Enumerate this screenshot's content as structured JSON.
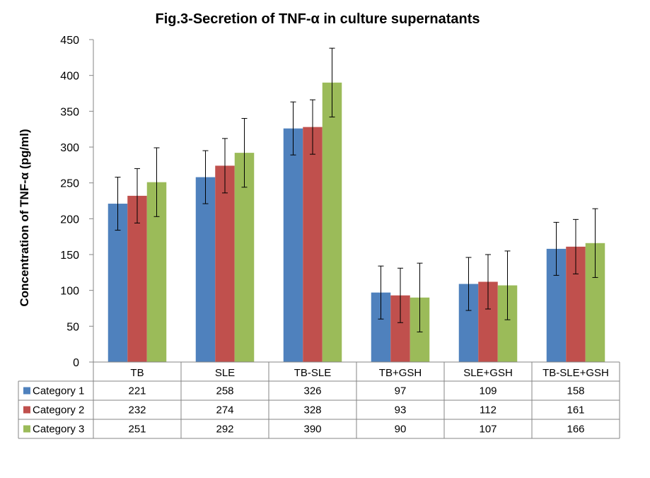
{
  "chart_data": {
    "type": "bar",
    "title": "Fig.3-Secretion of TNF-α in culture supernatants",
    "xlabel": "",
    "ylabel": "Concentration of TNF-α (pg/ml)",
    "ylim": [
      0,
      450
    ],
    "yticks": [
      0,
      50,
      100,
      150,
      200,
      250,
      300,
      350,
      400,
      450
    ],
    "categories": [
      "TB",
      "SLE",
      "TB-SLE",
      "TB+GSH",
      "SLE+GSH",
      "TB-SLE+GSH"
    ],
    "series": [
      {
        "name": "Category 1",
        "color": "#4f81bd",
        "values": [
          221,
          258,
          326,
          97,
          109,
          158
        ],
        "error": [
          37,
          37,
          37,
          37,
          37,
          37
        ]
      },
      {
        "name": "Category 2",
        "color": "#c0504d",
        "values": [
          232,
          274,
          328,
          93,
          112,
          161
        ],
        "error": [
          38,
          38,
          38,
          38,
          38,
          38
        ]
      },
      {
        "name": "Category 3",
        "color": "#9bbb59",
        "values": [
          251,
          292,
          390,
          90,
          107,
          166
        ],
        "error": [
          48,
          48,
          48,
          48,
          48,
          48
        ]
      }
    ],
    "grid": false,
    "legend": "data-table",
    "data_table": true
  }
}
